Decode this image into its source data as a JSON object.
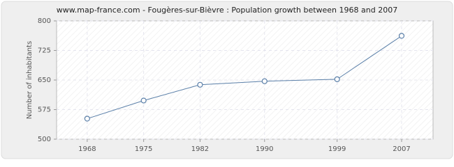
{
  "chart_data": {
    "type": "line",
    "title": "www.map-france.com - Fougères-sur-Bièvre : Population growth between 1968 and 2007",
    "y_label": "Number of inhabitants",
    "x": [
      1968,
      1975,
      1982,
      1990,
      1999,
      2007
    ],
    "series": [
      {
        "name": "Population",
        "color": "#5a7fa8",
        "values": [
          552,
          598,
          638,
          647,
          652,
          762
        ]
      }
    ],
    "xlim": [
      1964.2,
      2010.9
    ],
    "xticks": [
      1968,
      1975,
      1982,
      1990,
      1999,
      2007
    ],
    "ylim": [
      500,
      800
    ],
    "yticks": [
      500,
      575,
      650,
      725,
      800
    ],
    "grid": true
  }
}
